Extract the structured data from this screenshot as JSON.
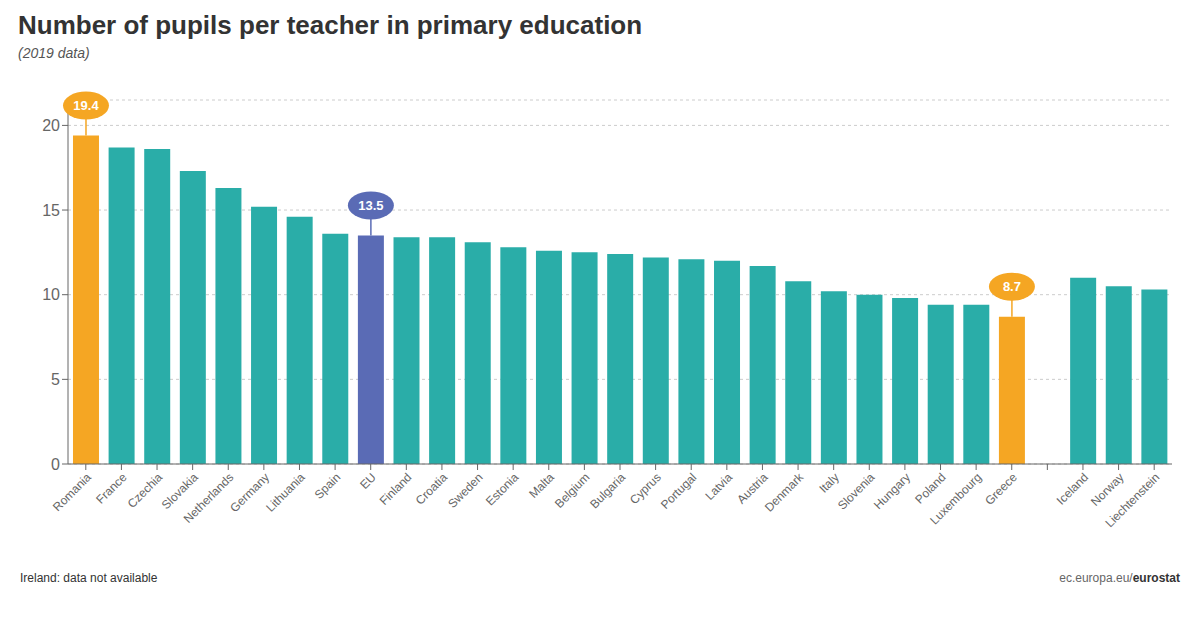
{
  "chart_data": {
    "type": "bar",
    "title": "Number of pupils per teacher in primary education",
    "subtitle": "(2019 data)",
    "categories": [
      "Romania",
      "France",
      "Czechia",
      "Slovakia",
      "Netherlands",
      "Germany",
      "Lithuania",
      "Spain",
      "EU",
      "Finland",
      "Croatia",
      "Sweden",
      "Estonia",
      "Malta",
      "Belgium",
      "Bulgaria",
      "Cyprus",
      "Portugal",
      "Latvia",
      "Austria",
      "Denmark",
      "Italy",
      "Slovenia",
      "Hungary",
      "Poland",
      "Luxembourg",
      "Greece",
      null,
      "Iceland",
      "Norway",
      "Liechtenstein"
    ],
    "values": [
      19.4,
      18.7,
      18.6,
      17.3,
      16.3,
      15.2,
      14.6,
      13.6,
      13.5,
      13.4,
      13.4,
      13.1,
      12.8,
      12.6,
      12.5,
      12.4,
      12.2,
      12.1,
      12.0,
      11.7,
      10.8,
      10.2,
      10.0,
      9.8,
      9.4,
      9.4,
      8.7,
      null,
      11.0,
      10.5,
      10.3
    ],
    "colors": [
      "#f5a623",
      "#2aada8",
      "#2aada8",
      "#2aada8",
      "#2aada8",
      "#2aada8",
      "#2aada8",
      "#2aada8",
      "#5a6bb5",
      "#2aada8",
      "#2aada8",
      "#2aada8",
      "#2aada8",
      "#2aada8",
      "#2aada8",
      "#2aada8",
      "#2aada8",
      "#2aada8",
      "#2aada8",
      "#2aada8",
      "#2aada8",
      "#2aada8",
      "#2aada8",
      "#2aada8",
      "#2aada8",
      "#2aada8",
      "#f5a623",
      null,
      "#2aada8",
      "#2aada8",
      "#2aada8"
    ],
    "annotations": [
      {
        "category": "Romania",
        "text": "19.4",
        "color": "#f5a623"
      },
      {
        "category": "EU",
        "text": "13.5",
        "color": "#5a6bb5"
      },
      {
        "category": "Greece",
        "text": "8.7",
        "color": "#f5a623"
      }
    ],
    "ylim": [
      0,
      21.5
    ],
    "yticks": [
      0,
      5,
      10,
      15,
      20
    ],
    "grid": true,
    "footer": "Ireland: data not available",
    "source": [
      "ec.europa.eu/",
      "eurostat"
    ]
  }
}
